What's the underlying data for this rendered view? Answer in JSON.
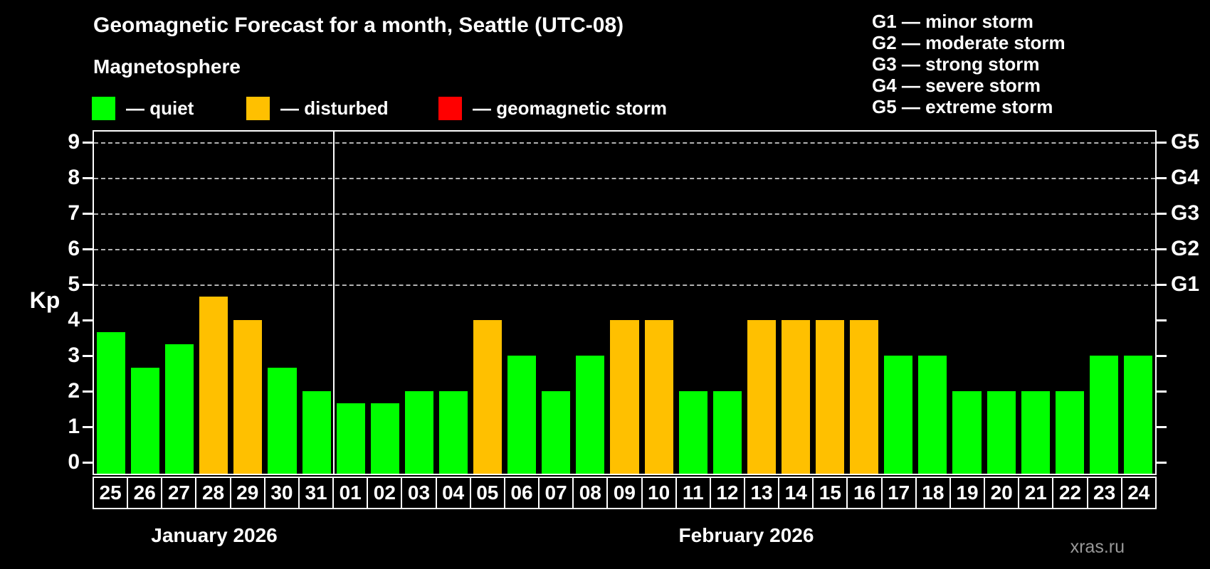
{
  "page": {
    "background": "#000000",
    "watermark": "xras.ru"
  },
  "chart_data": {
    "type": "bar",
    "title": "Geomagnetic Forecast for a month, Seattle (UTC-08)",
    "subtitle": "Magnetosphere",
    "ylabel": "Kp",
    "ylim": [
      0,
      9
    ],
    "y_ticks": [
      0,
      1,
      2,
      3,
      4,
      5,
      6,
      7,
      8,
      9
    ],
    "gridlines_at": [
      5,
      6,
      7,
      8,
      9
    ],
    "grid": "dashed",
    "legend_position": "top-left",
    "legend": [
      {
        "label": "— quiet",
        "status": "quiet",
        "color": "#00ff00"
      },
      {
        "label": "— disturbed",
        "status": "disturbed",
        "color": "#ffc000"
      },
      {
        "label": "— geomagnetic storm",
        "status": "storm",
        "color": "#ff0000"
      }
    ],
    "status_colors": {
      "quiet": "#00ff00",
      "disturbed": "#ffc000",
      "storm": "#ff0000"
    },
    "g_scale": [
      "G1 — minor storm",
      "G2 — moderate storm",
      "G3 — strong storm",
      "G4 — severe storm",
      "G5 — extreme storm"
    ],
    "right_axis": [
      {
        "kp": 5,
        "label": "G1"
      },
      {
        "kp": 6,
        "label": "G2"
      },
      {
        "kp": 7,
        "label": "G3"
      },
      {
        "kp": 8,
        "label": "G4"
      },
      {
        "kp": 9,
        "label": "G5"
      }
    ],
    "months": [
      {
        "label": "January 2026",
        "days": 7
      },
      {
        "label": "February 2026",
        "days": 24
      }
    ],
    "categories": [
      "25",
      "26",
      "27",
      "28",
      "29",
      "30",
      "31",
      "01",
      "02",
      "03",
      "04",
      "05",
      "06",
      "07",
      "08",
      "09",
      "10",
      "11",
      "12",
      "13",
      "14",
      "15",
      "16",
      "17",
      "18",
      "19",
      "20",
      "21",
      "22",
      "23",
      "24"
    ],
    "days": [
      {
        "day": "25",
        "kp": 3.67,
        "status": "quiet"
      },
      {
        "day": "26",
        "kp": 2.67,
        "status": "quiet"
      },
      {
        "day": "27",
        "kp": 3.33,
        "status": "quiet"
      },
      {
        "day": "28",
        "kp": 4.67,
        "status": "disturbed"
      },
      {
        "day": "29",
        "kp": 4.0,
        "status": "disturbed"
      },
      {
        "day": "30",
        "kp": 2.67,
        "status": "quiet"
      },
      {
        "day": "31",
        "kp": 2.0,
        "status": "quiet"
      },
      {
        "day": "01",
        "kp": 1.67,
        "status": "quiet"
      },
      {
        "day": "02",
        "kp": 1.67,
        "status": "quiet"
      },
      {
        "day": "03",
        "kp": 2.0,
        "status": "quiet"
      },
      {
        "day": "04",
        "kp": 2.0,
        "status": "quiet"
      },
      {
        "day": "05",
        "kp": 4.0,
        "status": "disturbed"
      },
      {
        "day": "06",
        "kp": 3.0,
        "status": "quiet"
      },
      {
        "day": "07",
        "kp": 2.0,
        "status": "quiet"
      },
      {
        "day": "08",
        "kp": 3.0,
        "status": "quiet"
      },
      {
        "day": "09",
        "kp": 4.0,
        "status": "disturbed"
      },
      {
        "day": "10",
        "kp": 4.0,
        "status": "disturbed"
      },
      {
        "day": "11",
        "kp": 2.0,
        "status": "quiet"
      },
      {
        "day": "12",
        "kp": 2.0,
        "status": "quiet"
      },
      {
        "day": "13",
        "kp": 4.0,
        "status": "disturbed"
      },
      {
        "day": "14",
        "kp": 4.0,
        "status": "disturbed"
      },
      {
        "day": "15",
        "kp": 4.0,
        "status": "disturbed"
      },
      {
        "day": "16",
        "kp": 4.0,
        "status": "disturbed"
      },
      {
        "day": "17",
        "kp": 3.0,
        "status": "quiet"
      },
      {
        "day": "18",
        "kp": 3.0,
        "status": "quiet"
      },
      {
        "day": "19",
        "kp": 2.0,
        "status": "quiet"
      },
      {
        "day": "20",
        "kp": 2.0,
        "status": "quiet"
      },
      {
        "day": "21",
        "kp": 2.0,
        "status": "quiet"
      },
      {
        "day": "22",
        "kp": 2.0,
        "status": "quiet"
      },
      {
        "day": "23",
        "kp": 3.0,
        "status": "quiet"
      },
      {
        "day": "24",
        "kp": 3.0,
        "status": "quiet"
      }
    ]
  }
}
